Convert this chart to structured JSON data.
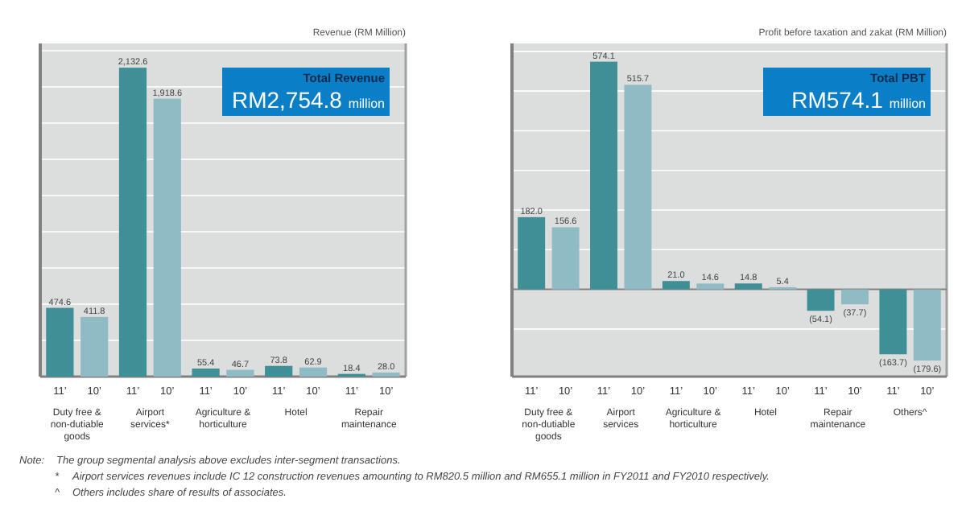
{
  "chart_data": [
    {
      "type": "bar",
      "title": "Revenue (RM Million)",
      "categories": [
        "Duty free & non-dutiable goods",
        "Airport services*",
        "Agriculture & horticulture",
        "Hotel",
        "Repair maintenance"
      ],
      "series": [
        {
          "name": "11’",
          "color": "#3f8f96",
          "values": [
            474.6,
            2132.6,
            55.4,
            73.8,
            18.4
          ],
          "value_labels": [
            "474.6",
            "2,132.6",
            "55.4",
            "73.8",
            "18.4"
          ]
        },
        {
          "name": "10’",
          "color": "#8fbcc4",
          "values": [
            411.8,
            1918.6,
            46.7,
            62.9,
            28.0
          ],
          "value_labels": [
            "411.8",
            "1,918.6",
            "46.7",
            "62.9",
            "28.0"
          ]
        }
      ],
      "ylim": [
        0,
        2300
      ],
      "yticks": [
        {
          "value": 250,
          "label": null
        },
        {
          "value": 500,
          "label": null
        },
        {
          "value": 750,
          "label": null
        },
        {
          "value": 1000,
          "label": null
        },
        {
          "value": 1250,
          "label": null
        },
        {
          "value": 1500,
          "label": null
        },
        {
          "value": 1750,
          "label": null
        },
        {
          "value": 2000,
          "label": null
        },
        {
          "value": 2250,
          "label": null
        }
      ],
      "tick_labels": "x",
      "grid": "y",
      "legend": false,
      "annotations": [
        "Total Revenue",
        "RM2,754.8 million",
        "Note:  The group segmental analysis above excludes inter-segment transactions.",
        "*  Airport services revenues include IC 12 construction revenues amounting to RM820.5 million and RM655.1 million in FY2011 and FY2010 respectively.",
        "^  Others includes share of results of associates."
      ]
    },
    {
      "type": "bar",
      "title": "Profit before taxation and zakat (RM Million)",
      "categories": [
        "Duty free & non-dutiable goods",
        "Airport services",
        "Agriculture & horticulture",
        "Hotel",
        "Repair maintenance",
        "Others^"
      ],
      "series": [
        {
          "name": "11’",
          "color": "#3f8f96",
          "values": [
            182.0,
            574.1,
            21.0,
            14.8,
            -54.1,
            -163.7
          ],
          "value_labels": [
            "182.0",
            "574.1",
            "21.0",
            "14.8",
            "(54.1)",
            "(163.7)"
          ]
        },
        {
          "name": "10’",
          "color": "#8fbcc4",
          "values": [
            156.6,
            515.7,
            14.6,
            5.4,
            -37.7,
            -179.6
          ],
          "value_labels": [
            "156.6",
            "515.7",
            "14.6",
            "5.4",
            "(37.7)",
            "(179.6)"
          ]
        }
      ],
      "ylim": [
        -220,
        620
      ],
      "yticks": [
        {
          "value": -100,
          "label": null
        },
        {
          "value": 0,
          "label": null
        },
        {
          "value": 100,
          "label": null
        },
        {
          "value": 200,
          "label": null
        },
        {
          "value": 300,
          "label": null
        },
        {
          "value": 400,
          "label": null
        },
        {
          "value": 500,
          "label": null
        },
        {
          "value": 600,
          "label": null
        }
      ],
      "tick_labels": "x",
      "grid": "y",
      "legend": false,
      "annotations": [
        "Total PBT",
        "RM574.1 million"
      ]
    }
  ]
}
